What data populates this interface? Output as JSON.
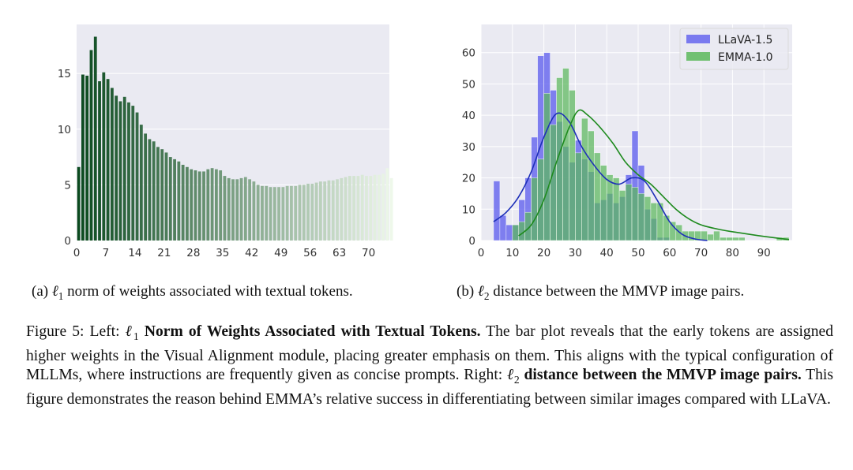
{
  "left_chart": {
    "chart_data": {
      "type": "bar",
      "x_ticks": [
        0,
        7,
        14,
        21,
        28,
        35,
        42,
        49,
        56,
        63,
        70
      ],
      "y_ticks": [
        0,
        5,
        10,
        15
      ],
      "xlim": [
        0,
        75
      ],
      "ylim": [
        0,
        19.4
      ],
      "grid": true,
      "color_start": "#0b4a1f",
      "color_end": "#eef8ea",
      "values": [
        6.6,
        14.9,
        14.8,
        17.1,
        18.3,
        14.3,
        15.1,
        14.5,
        13.7,
        13.0,
        12.5,
        12.9,
        12.4,
        12.1,
        11.5,
        10.4,
        9.6,
        9.1,
        8.9,
        8.4,
        8.2,
        7.9,
        7.5,
        7.3,
        7.1,
        6.8,
        6.6,
        6.4,
        6.3,
        6.2,
        6.2,
        6.4,
        6.5,
        6.4,
        6.3,
        5.8,
        5.6,
        5.5,
        5.5,
        5.6,
        5.7,
        5.5,
        5.3,
        5.0,
        4.9,
        4.9,
        4.8,
        4.8,
        4.8,
        4.8,
        4.9,
        4.9,
        4.9,
        5.0,
        5.0,
        5.1,
        5.1,
        5.2,
        5.3,
        5.3,
        5.4,
        5.4,
        5.5,
        5.6,
        5.7,
        5.8,
        5.8,
        5.8,
        5.9,
        5.8,
        5.8,
        5.9,
        5.9,
        6.0,
        6.5,
        5.6
      ]
    }
  },
  "right_chart": {
    "chart_data": {
      "type": "bar",
      "x_ticks": [
        0,
        10,
        20,
        30,
        40,
        50,
        60,
        70,
        80,
        90
      ],
      "y_ticks": [
        0,
        10,
        20,
        30,
        40,
        50,
        60
      ],
      "xlim": [
        0,
        99
      ],
      "ylim": [
        0,
        69
      ],
      "grid": true,
      "legend_position": "top-right",
      "bin_start": 4,
      "bin_width": 2,
      "series": [
        {
          "name": "LLaVA-1.5",
          "color": "#6666ee",
          "line_color": "#1d2fb8",
          "counts": [
            19,
            8,
            5,
            5,
            13,
            20,
            33,
            59,
            60,
            48,
            38,
            30,
            25,
            32,
            26,
            22,
            12,
            13,
            15,
            12,
            14,
            21,
            35,
            24,
            10,
            7,
            1,
            1,
            0,
            0,
            0,
            0,
            0,
            0,
            0,
            0,
            0,
            0,
            0,
            0,
            0,
            0,
            0,
            0,
            0,
            0,
            0
          ],
          "kde_x": [
            4,
            8,
            12,
            16,
            20,
            24,
            28,
            32,
            36,
            40,
            44,
            48,
            52,
            56,
            60,
            64,
            68,
            72
          ],
          "kde_y": [
            6,
            9,
            14,
            22,
            33,
            40.5,
            38,
            30,
            24,
            19.5,
            18,
            20,
            19,
            13,
            6,
            2,
            0.5,
            0
          ]
        },
        {
          "name": "EMMA-1.0",
          "color": "#5cb85c",
          "line_color": "#1e8a1e",
          "counts": [
            0,
            0,
            0,
            5,
            6,
            9,
            20,
            26,
            47,
            37,
            52,
            55,
            48,
            28,
            39,
            35,
            28,
            24,
            21,
            20,
            16,
            18,
            17,
            15,
            14,
            12,
            12,
            8,
            6,
            5,
            3,
            3,
            3,
            3,
            2,
            3,
            1,
            1,
            1,
            1,
            0,
            0,
            0,
            0,
            0,
            1,
            1
          ],
          "kde_x": [
            12,
            16,
            20,
            24,
            28,
            31,
            34,
            38,
            42,
            46,
            50,
            54,
            58,
            62,
            66,
            70,
            76,
            82,
            88,
            94,
            98
          ],
          "kde_y": [
            1.5,
            5,
            13,
            25,
            36,
            41.5,
            40,
            36,
            31,
            25,
            21,
            18,
            14,
            10,
            7,
            5,
            3.5,
            2.5,
            1.6,
            0.8,
            0.3
          ]
        }
      ]
    }
  },
  "captions": {
    "sub_a_prefix": "(a) ",
    "sub_a_math": "ℓ",
    "sub_a_math_sub": "1",
    "sub_a_text": " norm of weights associated with textual tokens.",
    "sub_b_prefix": "(b) ",
    "sub_b_math": "ℓ",
    "sub_b_math_sub": "2",
    "sub_b_text": " distance between the MMVP image pairs.",
    "figure": {
      "part1": "Figure 5: Left: ",
      "math1": "ℓ",
      "math1_sub": "1",
      "bold1": " Norm of Weights Associated with Textual Tokens.",
      "part2": " The bar plot reveals that the early tokens are assigned higher weights in the Visual Alignment module, placing greater emphasis on them. This aligns with the typical configuration of MLLMs, where instructions are frequently given as concise prompts. Right: ",
      "math2": "ℓ",
      "math2_sub": "2",
      "bold2": " distance between the MMVP image pairs.",
      "part3": " This figure demonstrates the reason behind EMMA’s relative success in differentiating between similar images compared with LLaVA."
    }
  }
}
